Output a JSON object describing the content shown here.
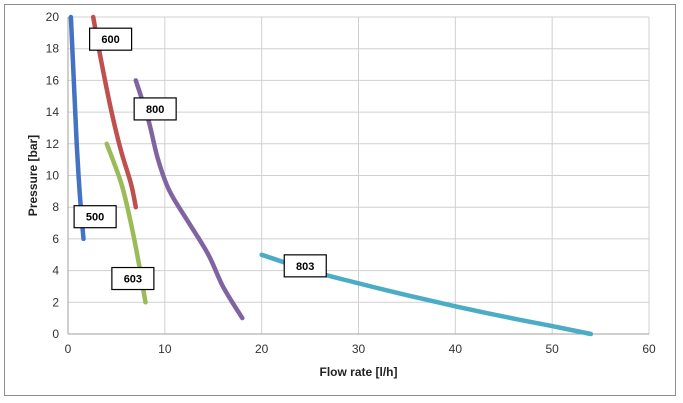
{
  "chart_data": {
    "type": "line",
    "title": "",
    "xlabel": "Flow rate [l/h]",
    "ylabel": "Pressure [bar]",
    "xlim": [
      0,
      60
    ],
    "ylim": [
      0,
      20
    ],
    "xticks": [
      0,
      10,
      20,
      30,
      40,
      50,
      60
    ],
    "yticks": [
      0,
      2,
      4,
      6,
      8,
      10,
      12,
      14,
      16,
      18,
      20
    ],
    "grid": true,
    "legend": "none",
    "series": [
      {
        "name": "500",
        "color": "#4472c4",
        "label_anchor": {
          "x": 2.8,
          "y": 7.4
        },
        "x": [
          0.3,
          0.6,
          0.9,
          1.2,
          1.6
        ],
        "y": [
          20,
          16,
          12,
          9,
          6
        ]
      },
      {
        "name": "600",
        "color": "#c0504d",
        "label_anchor": {
          "x": 4.4,
          "y": 18.6
        },
        "x": [
          2.6,
          3.5,
          4.5,
          5.5,
          6.5,
          7.0
        ],
        "y": [
          20,
          17,
          14,
          11.5,
          9.5,
          8
        ]
      },
      {
        "name": "800",
        "color": "#8064a2",
        "label_anchor": {
          "x": 9.0,
          "y": 14.2
        },
        "x": [
          7.0,
          8.3,
          9.3,
          10.5,
          12.5,
          14.5,
          16.0,
          18.0
        ],
        "y": [
          16,
          13.5,
          11,
          9,
          7,
          5,
          3,
          1
        ]
      },
      {
        "name": "603",
        "color": "#9bbb59",
        "label_anchor": {
          "x": 6.7,
          "y": 3.5
        },
        "x": [
          4.0,
          5.5,
          6.5,
          7.3,
          8.0
        ],
        "y": [
          12,
          9.5,
          7,
          4.5,
          2
        ]
      },
      {
        "name": "803",
        "color": "#4bacc6",
        "label_anchor": {
          "x": 24.5,
          "y": 4.3
        },
        "x": [
          20,
          25,
          30,
          35,
          40,
          45,
          50,
          54
        ],
        "y": [
          5,
          4.0,
          3.2,
          2.45,
          1.75,
          1.1,
          0.5,
          0
        ]
      }
    ]
  }
}
